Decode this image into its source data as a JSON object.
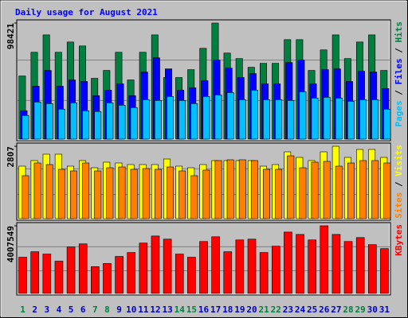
{
  "chart_data": [
    {
      "type": "bar",
      "title": "Daily usage for August 2021",
      "ylim": [
        0,
        98421
      ],
      "yticks": [
        98421
      ],
      "series": [
        {
          "name": "Hits",
          "color": "#008040",
          "values": [
            53560,
            73650,
            88380,
            73650,
            82350,
            79000,
            51550,
            58250,
            73650,
            50210,
            73650,
            88380,
            52220,
            52220,
            58920,
            77000,
            98421,
            72980,
            68290,
            60930,
            64270,
            64270,
            84360,
            84360,
            58250,
            75660,
            88380,
            68290,
            82350,
            88380,
            58250
          ]
        },
        {
          "name": "Files",
          "color": "#0000ff",
          "values": [
            24100,
            44860,
            58250,
            44860,
            50210,
            48880,
            36820,
            41510,
            46870,
            36820,
            56910,
            68960,
            59590,
            41510,
            43520,
            49540,
            66950,
            60260,
            52220,
            55570,
            46870,
            46870,
            64940,
            66950,
            46870,
            58920,
            59590,
            48880,
            57580,
            56910,
            42850
          ]
        },
        {
          "name": "Pages",
          "color": "#00c0ff",
          "values": [
            20090,
            31470,
            30130,
            25440,
            30800,
            24100,
            23430,
            30800,
            28790,
            26780,
            33480,
            32810,
            36150,
            32810,
            30130,
            36150,
            37490,
            39500,
            33480,
            41510,
            33480,
            33480,
            32810,
            40170,
            34810,
            35480,
            34810,
            32140,
            33480,
            33480,
            25440
          ]
        }
      ]
    },
    {
      "type": "bar",
      "ylim": [
        0,
        2807
      ],
      "yticks": [
        2807
      ],
      "series": [
        {
          "name": "Visits",
          "color": "#ffff00",
          "values": [
            2036,
            2252,
            2499,
            2499,
            2036,
            2252,
            1974,
            2190,
            2159,
            2098,
            2098,
            2098,
            2313,
            2036,
            1974,
            2098,
            2252,
            2252,
            2252,
            2252,
            2036,
            2098,
            2591,
            2375,
            2252,
            2591,
            2807,
            2375,
            2684,
            2684,
            2375
          ]
        },
        {
          "name": "Sites",
          "color": "#ff8000",
          "values": [
            1666,
            2159,
            2098,
            1913,
            1851,
            2159,
            1851,
            1974,
            2005,
            1913,
            1943,
            1913,
            2005,
            1851,
            1666,
            1882,
            2252,
            2283,
            2283,
            2252,
            1913,
            1913,
            2437,
            1974,
            2190,
            2221,
            2036,
            2159,
            2252,
            2252,
            2159
          ]
        }
      ]
    },
    {
      "type": "bar",
      "categories": [
        "1",
        "2",
        "3",
        "4",
        "5",
        "6",
        "7",
        "8",
        "9",
        "10",
        "11",
        "12",
        "13",
        "14",
        "15",
        "16",
        "17",
        "18",
        "19",
        "20",
        "21",
        "22",
        "23",
        "24",
        "25",
        "26",
        "27",
        "28",
        "29",
        "30",
        "31"
      ],
      "category_colors": [
        "#008040",
        "#0000c0",
        "#0000c0",
        "#0000c0",
        "#0000c0",
        "#0000c0",
        "#008040",
        "#008040",
        "#0000c0",
        "#0000c0",
        "#0000c0",
        "#0000c0",
        "#0000c0",
        "#008040",
        "#008040",
        "#0000c0",
        "#0000c0",
        "#0000c0",
        "#0000c0",
        "#0000c0",
        "#008040",
        "#008040",
        "#0000c0",
        "#0000c0",
        "#0000c0",
        "#0000c0",
        "#0000c0",
        "#008040",
        "#008040",
        "#0000c0",
        "#0000c0"
      ],
      "ylim": [
        0,
        4007549
      ],
      "yticks": [
        4007549
      ],
      "series": [
        {
          "name": "KBytes",
          "color": "#ff0000",
          "values": [
            2143570,
            2469800,
            2330000,
            1910600,
            2749400,
            2935800,
            1584400,
            1770800,
            2190200,
            2423200,
            2982400,
            3401800,
            3215400,
            2330000,
            2143570,
            3075600,
            3355200,
            2469800,
            3168800,
            3215400,
            2423200,
            2796000,
            3634800,
            3495000,
            3168800,
            4007549,
            3495000,
            3075600,
            3308600,
            2889200,
            2656200
          ]
        }
      ]
    }
  ]
}
